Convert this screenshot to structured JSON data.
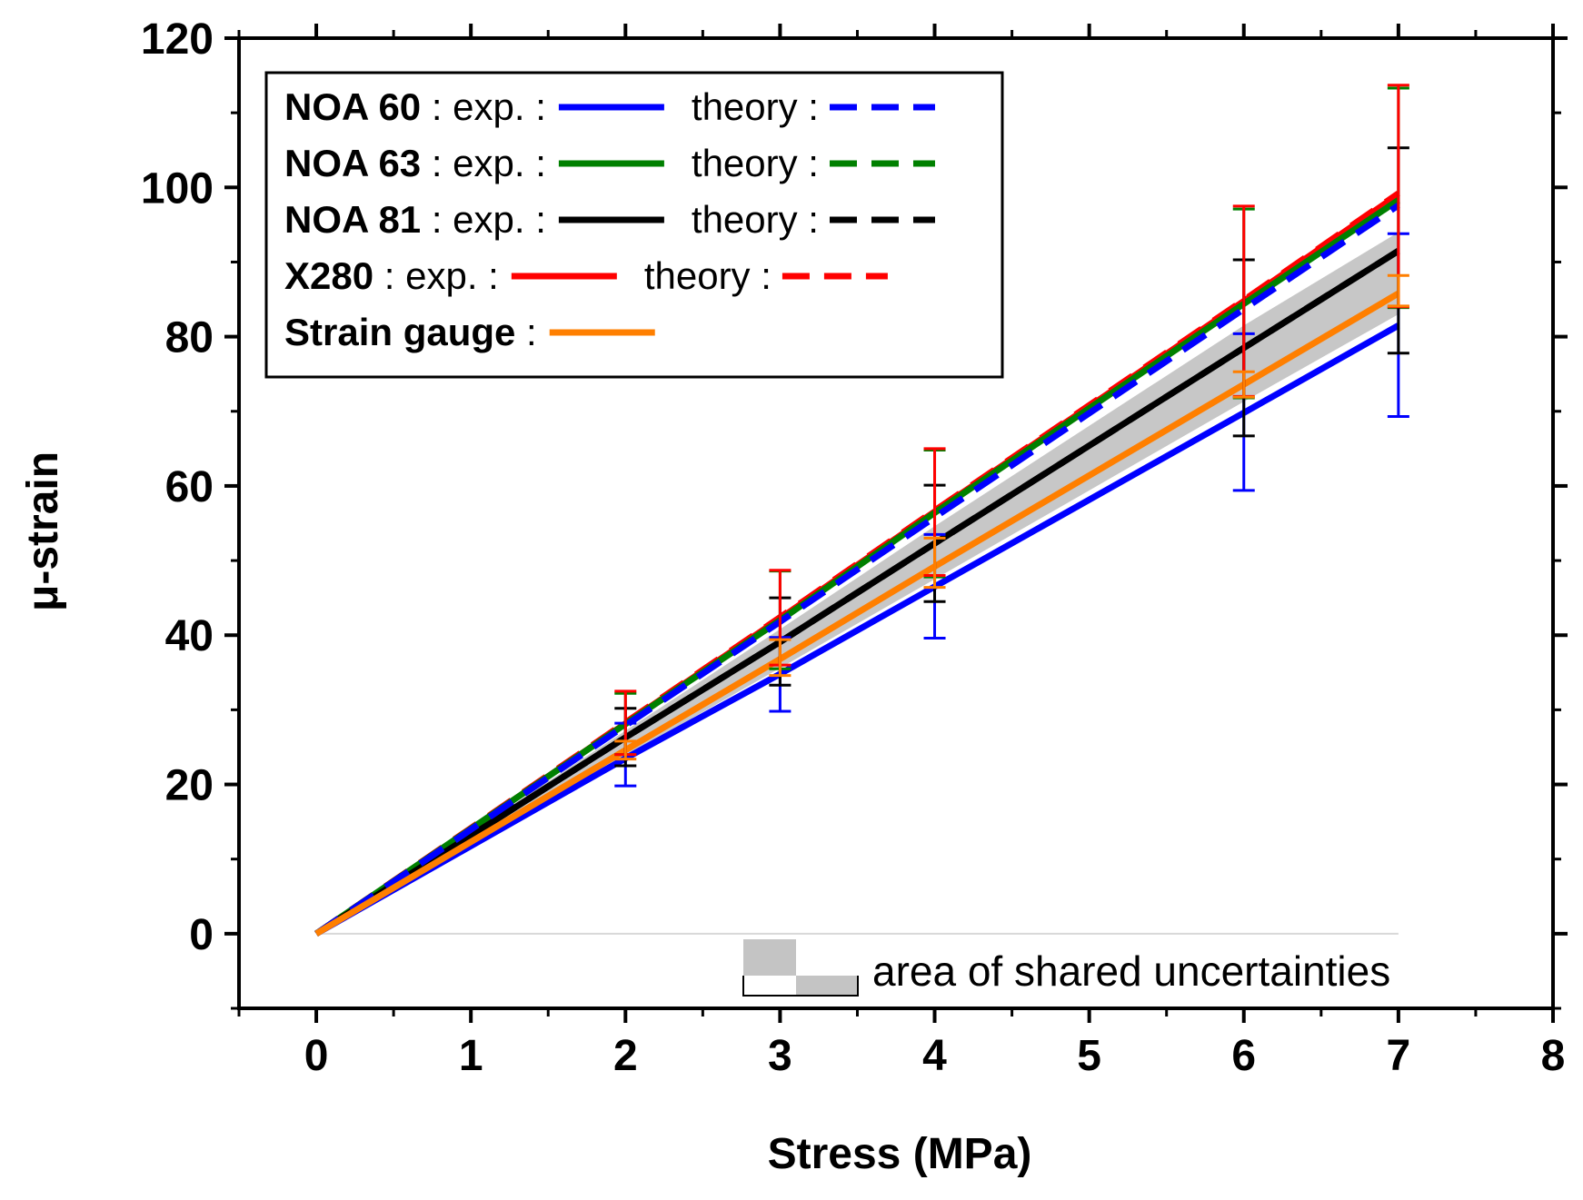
{
  "chart_data": {
    "type": "line",
    "title": "",
    "xlabel": "Stress (MPa)",
    "ylabel": "μ-strain",
    "xlim": [
      -0.5,
      8
    ],
    "ylim": [
      -10,
      120
    ],
    "xticks": [
      0,
      1,
      2,
      3,
      4,
      5,
      6,
      7,
      8
    ],
    "yticks": [
      0,
      20,
      40,
      60,
      80,
      100,
      120
    ],
    "x": [
      0,
      2,
      3,
      4,
      6,
      7
    ],
    "series": [
      {
        "id": "noa60-exp",
        "name": "NOA 60",
        "kind": "exp.",
        "color": "#0000ff",
        "dash": false,
        "values": [
          0,
          23.5,
          34.8,
          46.5,
          69.8,
          81.5
        ],
        "err_low": [
          0,
          19.8,
          29.8,
          39.6,
          59.4,
          69.3
        ],
        "err_high": [
          0,
          28.2,
          39.7,
          53.5,
          80.4,
          93.8
        ]
      },
      {
        "id": "noa60-theory",
        "name": "NOA 60",
        "kind": "theory",
        "color": "#0000ff",
        "dash": true,
        "values": [
          0,
          27.9,
          41.8,
          55.8,
          83.7,
          97.6
        ]
      },
      {
        "id": "noa63-exp",
        "name": "NOA 63",
        "kind": "exp.",
        "color": "#008000",
        "dash": false,
        "values": [
          0,
          28.1,
          42.0,
          56.4,
          84.4,
          98.3
        ],
        "err_low": [
          0,
          24.0,
          35.5,
          47.8,
          71.8,
          83.9
        ],
        "err_high": [
          0,
          32.2,
          48.6,
          64.8,
          97.1,
          113.3
        ]
      },
      {
        "id": "noa63-theory",
        "name": "NOA 63",
        "kind": "theory",
        "color": "#008000",
        "dash": true,
        "values": [
          0,
          28.0,
          42.0,
          56.2,
          84.2,
          98.2
        ]
      },
      {
        "id": "noa81-exp",
        "name": "NOA 81",
        "kind": "exp.",
        "color": "#000000",
        "dash": false,
        "values": [
          0,
          26.3,
          39.1,
          52.3,
          78.5,
          91.5
        ],
        "err_low": [
          0,
          22.5,
          33.3,
          44.5,
          66.7,
          77.8
        ],
        "err_high": [
          0,
          30.2,
          45.0,
          60.1,
          90.3,
          105.3
        ]
      },
      {
        "id": "noa81-theory",
        "name": "NOA 81",
        "kind": "theory",
        "color": "#000000",
        "dash": true,
        "values": [
          0,
          26.3,
          39.1,
          52.3,
          78.5,
          91.5
        ]
      },
      {
        "id": "x280-exp",
        "name": "X280",
        "kind": "exp.",
        "color": "#ff0000",
        "dash": false,
        "values": [
          0,
          28.3,
          42.4,
          56.7,
          84.9,
          99.2
        ],
        "err_low": [
          0,
          24.0,
          36.0,
          48.0,
          72.0,
          84.0
        ],
        "err_high": [
          0,
          32.5,
          48.7,
          65.0,
          97.5,
          113.7
        ]
      },
      {
        "id": "x280-theory",
        "name": "X280",
        "kind": "theory",
        "color": "#ff0000",
        "dash": true,
        "values": [
          0,
          28.3,
          42.4,
          56.7,
          84.9,
          99.2
        ]
      },
      {
        "id": "strain-gauge",
        "name": "Strain gauge",
        "kind": "",
        "color": "#ff7f00",
        "dash": false,
        "values": [
          0,
          24.6,
          36.8,
          49.2,
          73.6,
          85.8
        ],
        "err_low": [
          0,
          23.4,
          34.6,
          46.4,
          71.9,
          84.1
        ],
        "err_high": [
          0,
          25.8,
          39.4,
          53.0,
          75.3,
          88.2
        ]
      }
    ],
    "shared_uncertainty_band": {
      "x": [
        0,
        2,
        3,
        4,
        6,
        7
      ],
      "lower": [
        0,
        23.8,
        35.6,
        47.5,
        71.3,
        83.0
      ],
      "upper": [
        0,
        27.2,
        40.8,
        54.6,
        81.5,
        94.0
      ],
      "color": "#bdbdbd"
    },
    "legend": {
      "position": "top-left",
      "rows": [
        {
          "name": "NOA 60",
          "exp_label": ": exp. :",
          "theory_label": "theory :"
        },
        {
          "name": "NOA 63",
          "exp_label": ": exp. :",
          "theory_label": "theory :"
        },
        {
          "name": "NOA 81",
          "exp_label": ": exp. :",
          "theory_label": "theory :"
        },
        {
          "name": "X280",
          "exp_label": ": exp. :",
          "theory_label": "theory :"
        },
        {
          "name": "Strain gauge",
          "exp_label": ":",
          "theory_label": ""
        }
      ]
    },
    "annotation": {
      "text": "area of shared uncertainties",
      "position": "bottom-right"
    }
  }
}
